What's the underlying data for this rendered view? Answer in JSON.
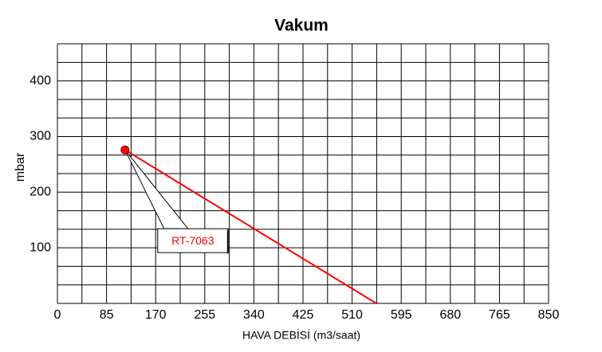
{
  "chart_data": {
    "type": "line",
    "title": "Vakum",
    "x_label": "HAVA DEBİSİ (m3/saat)",
    "y_label": "mbar",
    "xlim": [
      0,
      850
    ],
    "xticks": [
      0,
      85,
      170,
      255,
      340,
      425,
      510,
      595,
      680,
      765,
      850
    ],
    "xgrid_step": 42.5,
    "ylim": [
      0,
      466.7
    ],
    "yticks": [
      100,
      200,
      300,
      400
    ],
    "ygrid_step": 33.33,
    "grid": true,
    "series": [
      {
        "name": "RT-7063",
        "color": "#ff0000",
        "x": [
          117,
          552
        ],
        "values": [
          276,
          0
        ]
      }
    ],
    "annotation": "RT-7063"
  }
}
